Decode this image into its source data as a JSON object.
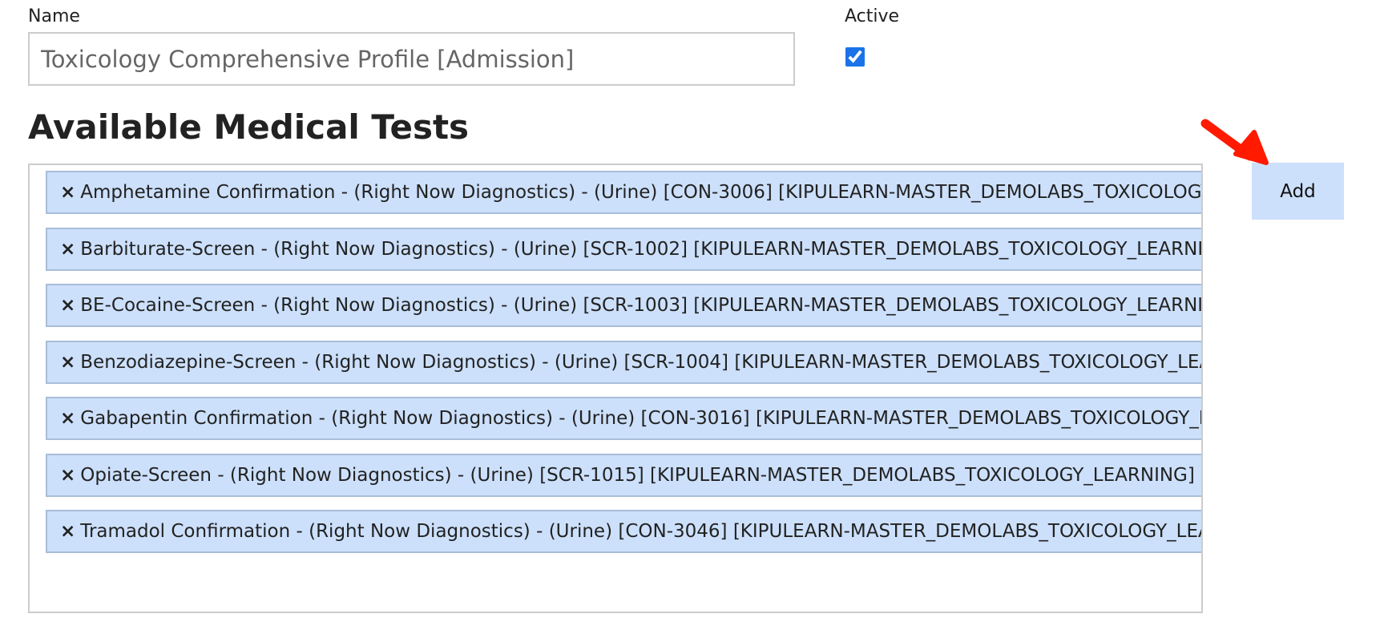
{
  "form": {
    "name_label": "Name",
    "name_value": "Toxicology Comprehensive Profile [Admission]",
    "active_label": "Active",
    "active_checked": true
  },
  "section": {
    "title": "Available Medical Tests",
    "remove_icon": "×",
    "items": [
      "Amphetamine Confirmation - (Right Now Diagnostics) - (Urine) [CON-3006] [KIPULEARN-MASTER_DEMOLABS_TOXICOLOGY_LEARNING]",
      "Barbiturate-Screen - (Right Now Diagnostics) - (Urine) [SCR-1002] [KIPULEARN-MASTER_DEMOLABS_TOXICOLOGY_LEARNING]",
      "BE-Cocaine-Screen - (Right Now Diagnostics) - (Urine) [SCR-1003] [KIPULEARN-MASTER_DEMOLABS_TOXICOLOGY_LEARNING]",
      "Benzodiazepine-Screen - (Right Now Diagnostics) - (Urine) [SCR-1004] [KIPULEARN-MASTER_DEMOLABS_TOXICOLOGY_LEARNING]",
      "Gabapentin Confirmation - (Right Now Diagnostics) - (Urine) [CON-3016] [KIPULEARN-MASTER_DEMOLABS_TOXICOLOGY_LEARNING]",
      "Opiate-Screen - (Right Now Diagnostics) - (Urine) [SCR-1015] [KIPULEARN-MASTER_DEMOLABS_TOXICOLOGY_LEARNING]",
      "Tramadol Confirmation - (Right Now Diagnostics) - (Urine) [CON-3046] [KIPULEARN-MASTER_DEMOLABS_TOXICOLOGY_LEARNING]"
    ],
    "add_label": "Add"
  },
  "annotation": {
    "arrow_color": "#ff1a00",
    "icon": "arrow-down-right-icon"
  }
}
